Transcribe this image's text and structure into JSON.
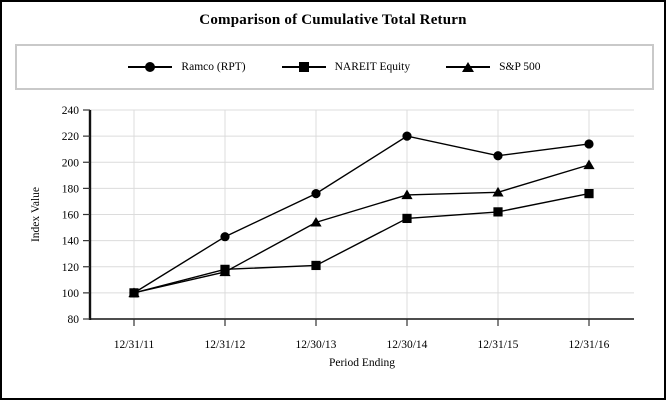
{
  "title": "Comparison of Cumulative Total Return",
  "chart_data": {
    "type": "line",
    "categories": [
      "12/31/11",
      "12/31/12",
      "12/30/13",
      "12/30/14",
      "12/31/15",
      "12/31/16"
    ],
    "series": [
      {
        "name": "Ramco (RPT)",
        "marker": "circle",
        "values": [
          100,
          143,
          176,
          220,
          205,
          214
        ]
      },
      {
        "name": "NAREIT Equity",
        "marker": "square",
        "values": [
          100,
          118,
          121,
          157,
          162,
          176
        ]
      },
      {
        "name": "S&P 500",
        "marker": "triangle",
        "values": [
          100,
          116,
          154,
          175,
          177,
          198
        ]
      }
    ],
    "xlabel": "Period Ending",
    "ylabel": "Index Value",
    "ylim": [
      80,
      240
    ],
    "yticks": [
      80,
      100,
      120,
      140,
      160,
      180,
      200,
      220,
      240
    ],
    "grid": true,
    "legend_position": "top",
    "line_color": "#000000",
    "grid_color": "#dcdcdc",
    "axis_color": "#4d4d4d",
    "marker_draw_order": [
      0,
      2,
      1
    ]
  }
}
